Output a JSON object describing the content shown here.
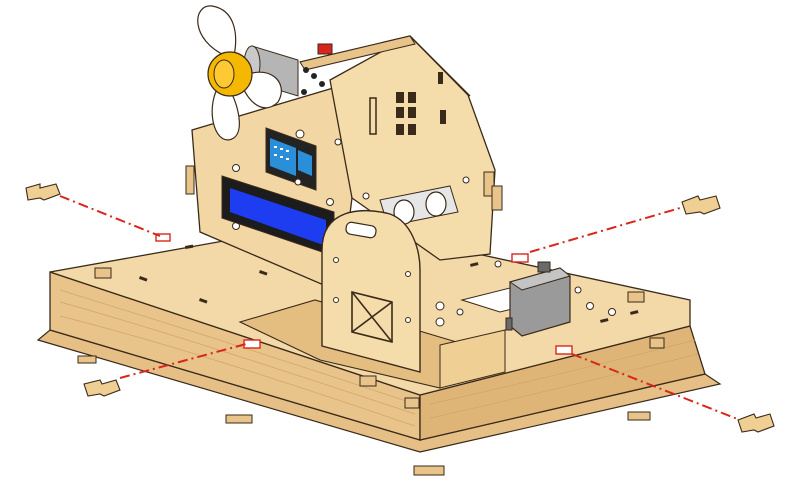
{
  "colors": {
    "wood_top": "#f3d9a8",
    "wood_side": "#e8c38a",
    "wood_dark": "#d8ac6c",
    "wood_grain": "#cfa56a",
    "outline": "#3a2a1a",
    "assembly_line": "#d9261c",
    "lcd_blue": "#1e3cf0",
    "lcd_frame": "#1c1c1c",
    "fan_hub": "#f5b800",
    "fan_blade": "#ffffff",
    "sensor_blue": "#2a8fd8",
    "servo_grey": "#9a9a9a",
    "motor_grey": "#b5b5b5",
    "pcb_black": "#232323"
  },
  "icons": {
    "fan": "fan-icon",
    "lcd": "lcd-display-icon",
    "humidity_sensor": "temperature-humidity-sensor-icon",
    "ultrasonic_sensor": "ultrasonic-sensor-icon",
    "servo": "servo-motor-icon",
    "door": "door-icon",
    "windows": "window-icon",
    "connector_pieces": "wooden-connector-icon"
  }
}
